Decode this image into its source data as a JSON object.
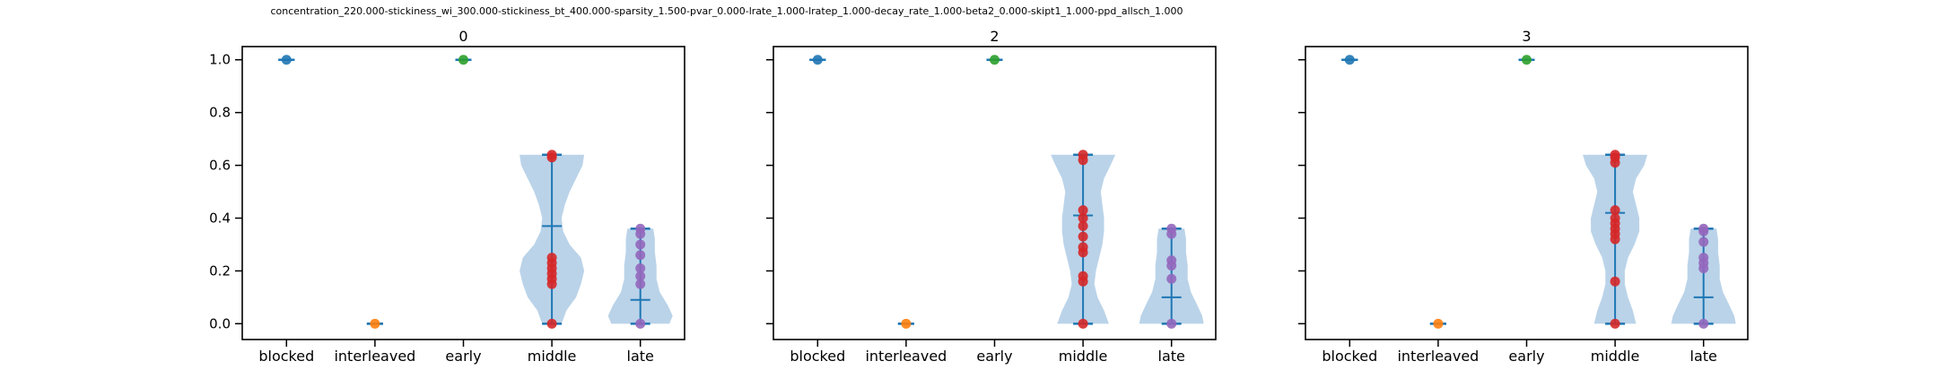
{
  "suptitle": "concentration_220.000-stickiness_wi_300.000-stickiness_bt_400.000-sparsity_1.500-pvar_0.000-lrate_1.000-lratep_1.000-decay_rate_1.000-beta2_0.000-skipt1_1.000-ppd_allsch_1.000",
  "colors": {
    "violin_fill": "#a9c8e3",
    "violin_line": "#1f77b4",
    "blocked": "#1f77b4",
    "interleaved": "#ff7f0e",
    "early": "#2ca02c",
    "middle": "#d62728",
    "late": "#9467bd"
  },
  "chart_data": [
    {
      "type": "violin",
      "title": "0",
      "categories": [
        "blocked",
        "interleaved",
        "early",
        "middle",
        "late"
      ],
      "yticks": [
        "0.0",
        "0.2",
        "0.4",
        "0.6",
        "0.8",
        "1.0"
      ],
      "ylim": [
        -0.06,
        1.05
      ],
      "groups": [
        {
          "category": "blocked",
          "min": 1.0,
          "max": 1.0,
          "median": 1.0,
          "points": [
            1.0
          ]
        },
        {
          "category": "interleaved",
          "min": 0.0,
          "max": 0.0,
          "median": 0.0,
          "points": [
            0.0
          ]
        },
        {
          "category": "early",
          "min": 1.0,
          "max": 1.0,
          "median": 1.0,
          "points": [
            1.0
          ]
        },
        {
          "category": "middle",
          "min": 0.0,
          "max": 0.64,
          "median": 0.37,
          "points": [
            0.0,
            0.15,
            0.17,
            0.19,
            0.21,
            0.23,
            0.25,
            0.63,
            0.64
          ],
          "density": [
            [
              0.0,
              0.3
            ],
            [
              0.05,
              0.45
            ],
            [
              0.1,
              0.75
            ],
            [
              0.15,
              0.9
            ],
            [
              0.2,
              1.0
            ],
            [
              0.25,
              0.9
            ],
            [
              0.3,
              0.55
            ],
            [
              0.35,
              0.35
            ],
            [
              0.4,
              0.3
            ],
            [
              0.45,
              0.4
            ],
            [
              0.5,
              0.55
            ],
            [
              0.55,
              0.75
            ],
            [
              0.6,
              0.95
            ],
            [
              0.64,
              1.0
            ]
          ]
        },
        {
          "category": "late",
          "min": 0.0,
          "max": 0.36,
          "median": 0.09,
          "points": [
            0.0,
            0.15,
            0.18,
            0.21,
            0.26,
            0.3,
            0.34,
            0.36
          ],
          "density": [
            [
              0.0,
              0.9
            ],
            [
              0.03,
              1.0
            ],
            [
              0.07,
              0.85
            ],
            [
              0.12,
              0.6
            ],
            [
              0.17,
              0.5
            ],
            [
              0.22,
              0.5
            ],
            [
              0.27,
              0.45
            ],
            [
              0.32,
              0.45
            ],
            [
              0.36,
              0.4
            ]
          ]
        }
      ]
    },
    {
      "type": "violin",
      "title": "2",
      "categories": [
        "blocked",
        "interleaved",
        "early",
        "middle",
        "late"
      ],
      "yticks": [
        "0.0",
        "0.2",
        "0.4",
        "0.6",
        "0.8",
        "1.0"
      ],
      "ylim": [
        -0.06,
        1.05
      ],
      "groups": [
        {
          "category": "blocked",
          "min": 1.0,
          "max": 1.0,
          "median": 1.0,
          "points": [
            1.0
          ]
        },
        {
          "category": "interleaved",
          "min": 0.0,
          "max": 0.0,
          "median": 0.0,
          "points": [
            0.0
          ]
        },
        {
          "category": "early",
          "min": 1.0,
          "max": 1.0,
          "median": 1.0,
          "points": [
            1.0
          ]
        },
        {
          "category": "middle",
          "min": 0.0,
          "max": 0.64,
          "median": 0.41,
          "points": [
            0.0,
            0.16,
            0.18,
            0.27,
            0.29,
            0.33,
            0.37,
            0.4,
            0.43,
            0.62,
            0.64
          ],
          "density": [
            [
              0.0,
              0.8
            ],
            [
              0.05,
              0.65
            ],
            [
              0.1,
              0.45
            ],
            [
              0.15,
              0.35
            ],
            [
              0.2,
              0.4
            ],
            [
              0.25,
              0.5
            ],
            [
              0.3,
              0.6
            ],
            [
              0.35,
              0.65
            ],
            [
              0.4,
              0.65
            ],
            [
              0.45,
              0.6
            ],
            [
              0.5,
              0.55
            ],
            [
              0.55,
              0.65
            ],
            [
              0.6,
              0.85
            ],
            [
              0.64,
              1.0
            ]
          ]
        },
        {
          "category": "late",
          "min": 0.0,
          "max": 0.36,
          "median": 0.1,
          "points": [
            0.0,
            0.17,
            0.22,
            0.24,
            0.34,
            0.36
          ],
          "density": [
            [
              0.0,
              1.0
            ],
            [
              0.03,
              0.95
            ],
            [
              0.07,
              0.8
            ],
            [
              0.12,
              0.6
            ],
            [
              0.17,
              0.5
            ],
            [
              0.22,
              0.5
            ],
            [
              0.27,
              0.45
            ],
            [
              0.32,
              0.45
            ],
            [
              0.36,
              0.4
            ]
          ]
        }
      ]
    },
    {
      "type": "violin",
      "title": "3",
      "categories": [
        "blocked",
        "interleaved",
        "early",
        "middle",
        "late"
      ],
      "yticks": [
        "0.0",
        "0.2",
        "0.4",
        "0.6",
        "0.8",
        "1.0"
      ],
      "ylim": [
        -0.06,
        1.05
      ],
      "groups": [
        {
          "category": "blocked",
          "min": 1.0,
          "max": 1.0,
          "median": 1.0,
          "points": [
            1.0
          ]
        },
        {
          "category": "interleaved",
          "min": 0.0,
          "max": 0.0,
          "median": 0.0,
          "points": [
            0.0
          ]
        },
        {
          "category": "early",
          "min": 1.0,
          "max": 1.0,
          "median": 1.0,
          "points": [
            1.0
          ]
        },
        {
          "category": "middle",
          "min": 0.0,
          "max": 0.64,
          "median": 0.42,
          "points": [
            0.0,
            0.16,
            0.32,
            0.34,
            0.36,
            0.38,
            0.4,
            0.43,
            0.61,
            0.63,
            0.64
          ],
          "density": [
            [
              0.0,
              0.65
            ],
            [
              0.05,
              0.55
            ],
            [
              0.1,
              0.4
            ],
            [
              0.15,
              0.3
            ],
            [
              0.2,
              0.3
            ],
            [
              0.25,
              0.4
            ],
            [
              0.3,
              0.6
            ],
            [
              0.35,
              0.75
            ],
            [
              0.4,
              0.75
            ],
            [
              0.45,
              0.65
            ],
            [
              0.5,
              0.55
            ],
            [
              0.55,
              0.65
            ],
            [
              0.6,
              0.9
            ],
            [
              0.64,
              1.0
            ]
          ]
        },
        {
          "category": "late",
          "min": 0.0,
          "max": 0.36,
          "median": 0.1,
          "points": [
            0.0,
            0.21,
            0.23,
            0.25,
            0.31,
            0.35,
            0.36
          ],
          "density": [
            [
              0.0,
              1.0
            ],
            [
              0.03,
              0.95
            ],
            [
              0.07,
              0.8
            ],
            [
              0.12,
              0.6
            ],
            [
              0.17,
              0.5
            ],
            [
              0.22,
              0.5
            ],
            [
              0.27,
              0.45
            ],
            [
              0.32,
              0.45
            ],
            [
              0.36,
              0.4
            ]
          ]
        }
      ]
    }
  ]
}
